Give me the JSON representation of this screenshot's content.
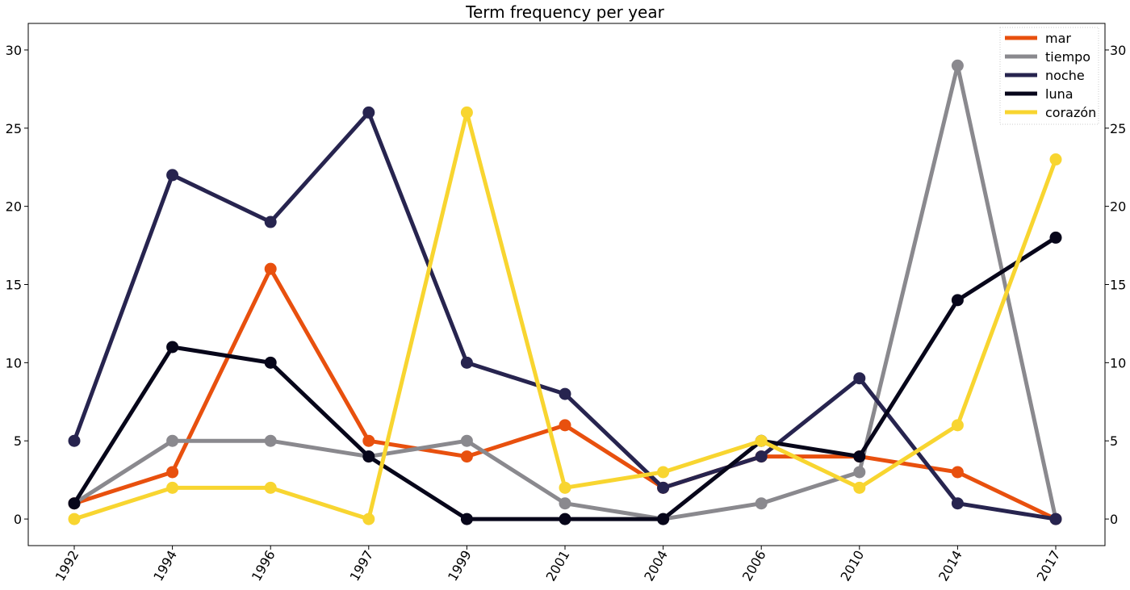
{
  "chart_data": {
    "type": "line",
    "title": "Term frequency per year",
    "xlabel": "",
    "ylabel": "",
    "categories": [
      "1992",
      "1994",
      "1996",
      "1997",
      "1999",
      "2001",
      "2004",
      "2006",
      "2010",
      "2014",
      "2017"
    ],
    "ylim": [
      -1.7,
      31.7
    ],
    "yticks": [
      0,
      5,
      10,
      15,
      20,
      25,
      30
    ],
    "secondary_y_axis": true,
    "grid": false,
    "legend_position": "top-right",
    "series": [
      {
        "name": "mar",
        "color": "#e8500e",
        "values": [
          1,
          3,
          16,
          5,
          4,
          6,
          2,
          4,
          4,
          3,
          0
        ]
      },
      {
        "name": "tiempo",
        "color": "#8a898e",
        "values": [
          1,
          5,
          5,
          4,
          5,
          1,
          0,
          1,
          3,
          29,
          0
        ]
      },
      {
        "name": "noche",
        "color": "#27244f",
        "values": [
          5,
          22,
          19,
          26,
          10,
          8,
          2,
          4,
          9,
          1,
          0
        ]
      },
      {
        "name": "luna",
        "color": "#07061a",
        "values": [
          1,
          11,
          10,
          4,
          0,
          0,
          0,
          5,
          4,
          14,
          18
        ]
      },
      {
        "name": "corazón",
        "color": "#f8d530",
        "values": [
          0,
          2,
          2,
          0,
          26,
          2,
          3,
          5,
          2,
          6,
          23
        ]
      }
    ]
  }
}
